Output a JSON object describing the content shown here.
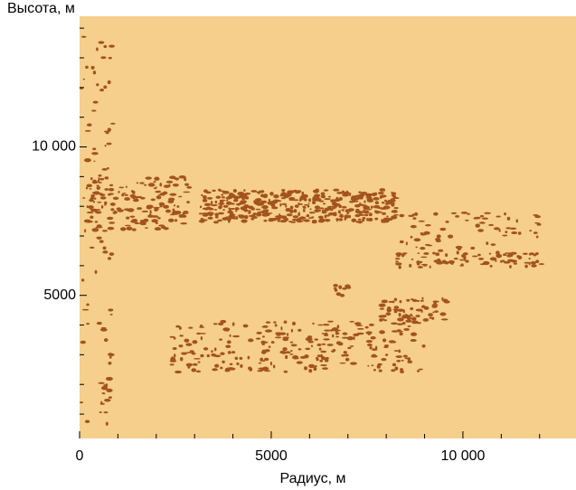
{
  "chart_data": {
    "type": "image",
    "xlabel": "Радиус, м",
    "ylabel": "Высота, м",
    "xlim": [
      0,
      12950
    ],
    "xticks": [
      0,
      5000,
      {
        "value": 10000,
        "label": "10 000"
      }
    ],
    "minor_xticks": [
      1000,
      2000,
      3000,
      4000,
      6000,
      7000,
      8000,
      9000,
      11000,
      12000
    ],
    "ylim": [
      180,
      14400
    ],
    "yticks": [
      5000,
      {
        "value": 10000,
        "label": "10 000"
      }
    ],
    "minor_yticks": [
      1000,
      2000,
      3000,
      4000,
      6000,
      7000,
      8000,
      9000,
      11000,
      12000,
      13000,
      14000
    ],
    "background_color": "#f5cf8b",
    "echo_color": "#a3531d"
  }
}
